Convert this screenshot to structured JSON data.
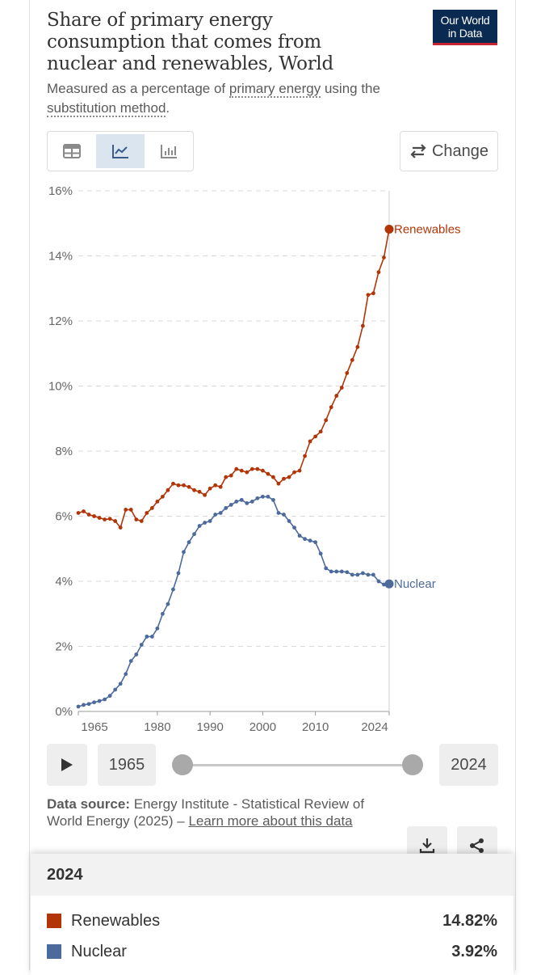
{
  "header": {
    "title": "Share of primary energy consumption that comes from nuclear and renewables, World",
    "logo_line1": "Our World",
    "logo_line2": "in Data",
    "subtitle_pre": "Measured as a percentage of ",
    "subtitle_link1": "primary energy",
    "subtitle_mid": " using the ",
    "subtitle_link2": "substitution method",
    "subtitle_post": "."
  },
  "toolbar": {
    "tabs": [
      {
        "icon": "table-icon",
        "active": false
      },
      {
        "icon": "line-chart-icon",
        "active": true
      },
      {
        "icon": "bar-chart-icon",
        "active": false
      }
    ],
    "change_label": "Change",
    "change_icon": "swap-arrows-icon"
  },
  "chart_data": {
    "type": "line",
    "title": "Share of primary energy consumption that comes from nuclear and renewables, World",
    "xlabel": "",
    "ylabel": "",
    "xlim": [
      1965,
      2024
    ],
    "ylim": [
      0,
      16
    ],
    "x_ticks": [
      1965,
      1980,
      1990,
      2000,
      2010,
      2024
    ],
    "y_ticks": [
      0,
      2,
      4,
      6,
      8,
      10,
      12,
      14,
      16
    ],
    "y_tick_labels": [
      "0%",
      "2%",
      "4%",
      "6%",
      "8%",
      "10%",
      "12%",
      "14%",
      "16%"
    ],
    "grid": "horizontal dashed",
    "legend": "end-of-line labels",
    "x": [
      1965,
      1966,
      1967,
      1968,
      1969,
      1970,
      1971,
      1972,
      1973,
      1974,
      1975,
      1976,
      1977,
      1978,
      1979,
      1980,
      1981,
      1982,
      1983,
      1984,
      1985,
      1986,
      1987,
      1988,
      1989,
      1990,
      1991,
      1992,
      1993,
      1994,
      1995,
      1996,
      1997,
      1998,
      1999,
      2000,
      2001,
      2002,
      2003,
      2004,
      2005,
      2006,
      2007,
      2008,
      2009,
      2010,
      2011,
      2012,
      2013,
      2014,
      2015,
      2016,
      2017,
      2018,
      2019,
      2020,
      2021,
      2022,
      2023,
      2024
    ],
    "series": [
      {
        "name": "Renewables",
        "color": "#b13507",
        "end_label": "Renewables",
        "values": [
          6.1,
          6.15,
          6.05,
          6.0,
          5.95,
          5.9,
          5.92,
          5.85,
          5.65,
          6.2,
          6.2,
          5.9,
          5.85,
          6.1,
          6.25,
          6.45,
          6.6,
          6.8,
          7.0,
          6.95,
          6.95,
          6.9,
          6.8,
          6.75,
          6.65,
          6.85,
          6.95,
          6.9,
          7.2,
          7.25,
          7.45,
          7.4,
          7.35,
          7.45,
          7.45,
          7.4,
          7.3,
          7.2,
          7.0,
          7.15,
          7.2,
          7.35,
          7.4,
          7.85,
          8.3,
          8.45,
          8.6,
          8.95,
          9.35,
          9.7,
          9.95,
          10.4,
          10.8,
          11.2,
          11.85,
          12.8,
          12.85,
          13.5,
          13.95,
          14.82
        ]
      },
      {
        "name": "Nuclear",
        "color": "#4c6a9c",
        "end_label": "Nuclear",
        "values": [
          0.15,
          0.2,
          0.23,
          0.28,
          0.32,
          0.37,
          0.48,
          0.67,
          0.85,
          1.15,
          1.55,
          1.75,
          2.05,
          2.3,
          2.3,
          2.55,
          3.0,
          3.3,
          3.75,
          4.25,
          4.9,
          5.2,
          5.45,
          5.7,
          5.8,
          5.85,
          6.05,
          6.1,
          6.25,
          6.35,
          6.45,
          6.5,
          6.4,
          6.45,
          6.55,
          6.6,
          6.6,
          6.5,
          6.1,
          6.05,
          5.85,
          5.65,
          5.4,
          5.3,
          5.25,
          5.2,
          4.85,
          4.4,
          4.3,
          4.3,
          4.3,
          4.28,
          4.2,
          4.2,
          4.25,
          4.2,
          4.2,
          4.0,
          3.9,
          3.92
        ]
      }
    ]
  },
  "timeline": {
    "play_icon": "play-icon",
    "start_year": "1965",
    "end_year": "2024"
  },
  "source": {
    "label": "Data source:",
    "text": " Energy Institute - Statistical Review of World Energy (2025) – ",
    "link": "Learn more about this data"
  },
  "actions": {
    "download_icon": "download-icon",
    "share_icon": "share-icon"
  },
  "tooltip": {
    "year": "2024",
    "rows": [
      {
        "name": "Renewables",
        "value": "14.82%",
        "color": "#b13507"
      },
      {
        "name": "Nuclear",
        "value": "3.92%",
        "color": "#4c6a9c"
      }
    ]
  }
}
